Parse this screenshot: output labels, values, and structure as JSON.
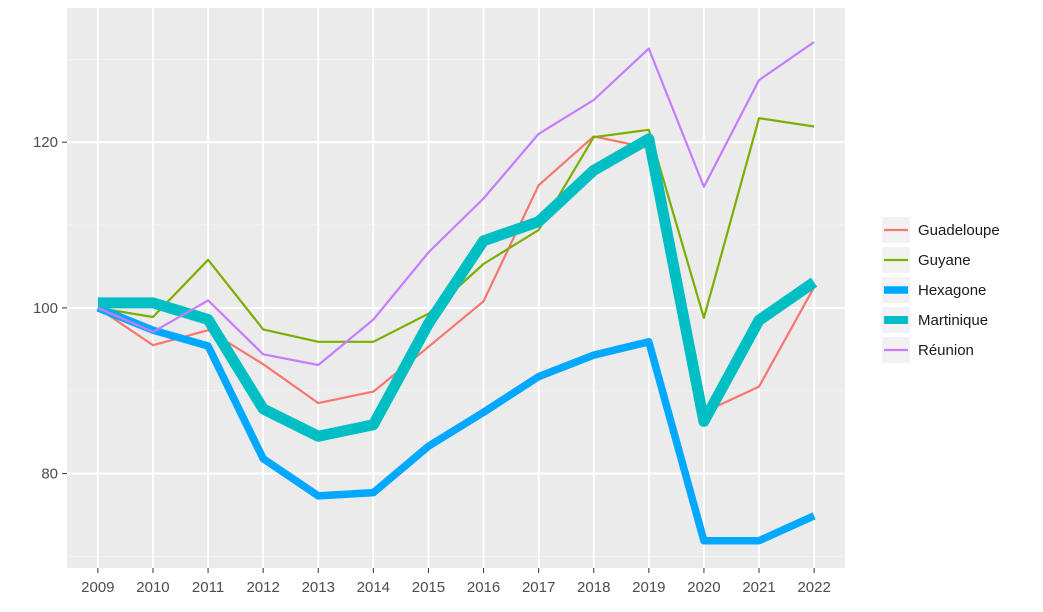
{
  "chart_data": {
    "type": "line",
    "title": "",
    "xlabel": "",
    "ylabel": "",
    "x": [
      2009,
      2010,
      2011,
      2012,
      2013,
      2014,
      2015,
      2016,
      2017,
      2018,
      2019,
      2020,
      2021,
      2022
    ],
    "x_tick_labels": [
      "2009",
      "2010",
      "2011",
      "2012",
      "2013",
      "2014",
      "2015",
      "2016",
      "2017",
      "2018",
      "2019",
      "2020",
      "2021",
      "2022"
    ],
    "y_ticks": [
      80,
      100,
      120
    ],
    "y_tick_labels": [
      "80",
      "100",
      "120"
    ],
    "ylim": [
      68.6,
      136.2
    ],
    "grid": true,
    "legend_position": "right",
    "series": [
      {
        "name": "Guadeloupe",
        "color": "#f8766d",
        "width": "thin",
        "values": [
          100,
          95.5,
          97.3,
          93.2,
          88.5,
          89.9,
          95.3,
          100.8,
          114.8,
          120.7,
          119.3,
          87.4,
          90.5,
          102.5
        ]
      },
      {
        "name": "Guyane",
        "color": "#7cae00",
        "width": "thin",
        "values": [
          100,
          98.9,
          105.8,
          97.4,
          95.9,
          95.9,
          99.3,
          105.3,
          109.4,
          120.6,
          121.5,
          98.8,
          122.9,
          121.9
        ]
      },
      {
        "name": "Hexagone",
        "color": "#00a9ff",
        "width": "thick",
        "values": [
          100,
          97.3,
          95.4,
          81.8,
          77.3,
          77.7,
          83.3,
          87.4,
          91.7,
          94.3,
          95.9,
          71.9,
          71.9,
          74.9
        ]
      },
      {
        "name": "Martinique",
        "color": "#00bfc4",
        "width": "thickest",
        "values": [
          100.6,
          100.6,
          98.6,
          87.8,
          84.5,
          85.9,
          98.1,
          108.1,
          110.4,
          116.6,
          120.4,
          86.3,
          98.5,
          103.1
        ]
      },
      {
        "name": "Réunion",
        "color": "#c77cff",
        "width": "thin",
        "values": [
          100,
          97.1,
          100.9,
          94.4,
          93.1,
          98.6,
          106.7,
          113.2,
          121,
          125.1,
          131.3,
          114.6,
          127.5,
          132.1
        ]
      }
    ]
  }
}
